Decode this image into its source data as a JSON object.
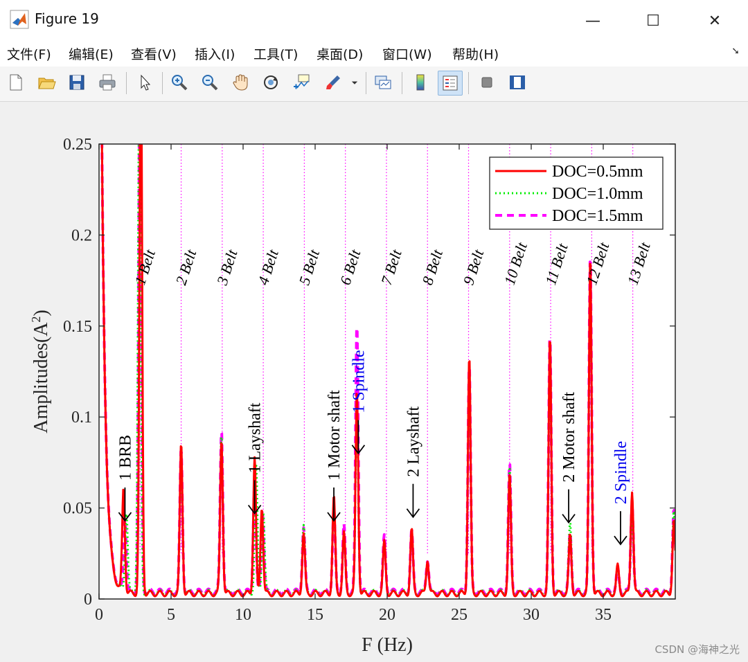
{
  "window": {
    "title": "Figure 19",
    "minimize_glyph": "—",
    "maximize_glyph": "☐",
    "close_glyph": "✕"
  },
  "menu": {
    "items": [
      "文件(F)",
      "编辑(E)",
      "查看(V)",
      "插入(I)",
      "工具(T)",
      "桌面(D)",
      "窗口(W)",
      "帮助(H)"
    ]
  },
  "toolbar": {
    "icons": [
      "new-figure-icon",
      "open-file-icon",
      "save-icon",
      "print-icon",
      "pointer-icon",
      "zoom-in-icon",
      "zoom-out-icon",
      "pan-hand-icon",
      "rotate-3d-icon",
      "data-cursor-icon",
      "brush-icon",
      "link-plot-icon",
      "colorbar-icon",
      "legend-icon",
      "hide-plot-tools-icon",
      "show-plot-tools-icon"
    ]
  },
  "watermark": "CSDN @海神之光",
  "colors": {
    "red": "#ff0000",
    "green": "#00ee00",
    "magenta": "#ff00ff",
    "blue": "#0000ee",
    "black": "#000000"
  },
  "chart_data": {
    "type": "line",
    "title": "",
    "xlabel": "F       (Hz)",
    "ylabel": "Amplitudes(A",
    "ylabel_sup": "2",
    "ylabel_close": ")",
    "xlim": [
      0,
      40
    ],
    "ylim": [
      0,
      0.25
    ],
    "xticks": [
      0,
      5,
      10,
      15,
      20,
      25,
      30,
      35
    ],
    "yticks": [
      0,
      0.05,
      0.1,
      0.15,
      0.2,
      0.25
    ],
    "xtick_labels": [
      "0",
      "5",
      "10",
      "15",
      "20",
      "25",
      "30",
      "35"
    ],
    "ytick_labels": [
      "0",
      "0.05",
      "0.1",
      "0.15",
      "0.2",
      "0.25"
    ],
    "legend_position": "top-right",
    "series": [
      {
        "name": "DOC=0.5mm",
        "style": "solid",
        "color": "#ff0000",
        "baseline": 0.003,
        "peaks": [
          [
            1.7,
            0.057
          ],
          [
            2.9,
            0.3
          ],
          [
            5.7,
            0.082
          ],
          [
            8.5,
            0.085
          ],
          [
            10.8,
            0.075
          ],
          [
            11.3,
            0.048
          ],
          [
            14.2,
            0.033
          ],
          [
            16.3,
            0.053
          ],
          [
            17.0,
            0.033
          ],
          [
            17.9,
            0.112
          ],
          [
            19.8,
            0.028
          ],
          [
            21.7,
            0.035
          ],
          [
            22.8,
            0.019
          ],
          [
            25.7,
            0.13
          ],
          [
            28.5,
            0.065
          ],
          [
            31.3,
            0.14
          ],
          [
            32.7,
            0.032
          ],
          [
            34.1,
            0.185
          ],
          [
            36.0,
            0.015
          ],
          [
            37.0,
            0.057
          ],
          [
            39.9,
            0.04
          ]
        ]
      },
      {
        "name": "DOC=1.0mm",
        "style": "dotted",
        "color": "#00ee00",
        "baseline": 0.0035,
        "peaks": [
          [
            1.9,
            0.045
          ],
          [
            2.8,
            0.29
          ],
          [
            5.7,
            0.075
          ],
          [
            8.5,
            0.088
          ],
          [
            10.9,
            0.07
          ],
          [
            11.4,
            0.045
          ],
          [
            14.2,
            0.037
          ],
          [
            16.3,
            0.05
          ],
          [
            17.0,
            0.03
          ],
          [
            17.9,
            0.105
          ],
          [
            19.8,
            0.027
          ],
          [
            21.7,
            0.033
          ],
          [
            22.8,
            0.017
          ],
          [
            25.7,
            0.125
          ],
          [
            28.5,
            0.068
          ],
          [
            31.3,
            0.135
          ],
          [
            32.7,
            0.038
          ],
          [
            34.1,
            0.175
          ],
          [
            36.0,
            0.013
          ],
          [
            37.0,
            0.045
          ],
          [
            39.9,
            0.045
          ]
        ]
      },
      {
        "name": "DOC=1.5mm",
        "style": "dashed",
        "color": "#ff00ff",
        "baseline": 0.004,
        "peaks": [
          [
            1.8,
            0.04
          ],
          [
            2.85,
            0.31
          ],
          [
            5.7,
            0.078
          ],
          [
            8.5,
            0.09
          ],
          [
            10.8,
            0.06
          ],
          [
            11.35,
            0.044
          ],
          [
            14.2,
            0.035
          ],
          [
            16.3,
            0.045
          ],
          [
            17.0,
            0.036
          ],
          [
            17.9,
            0.148
          ],
          [
            19.8,
            0.03
          ],
          [
            21.7,
            0.033
          ],
          [
            22.8,
            0.018
          ],
          [
            25.7,
            0.125
          ],
          [
            28.5,
            0.07
          ],
          [
            31.3,
            0.14
          ],
          [
            32.7,
            0.032
          ],
          [
            34.1,
            0.185
          ],
          [
            36.0,
            0.012
          ],
          [
            37.0,
            0.05
          ],
          [
            39.9,
            0.045
          ]
        ]
      }
    ],
    "belt_lines": [
      {
        "x": 2.85,
        "label": "1 Belt"
      },
      {
        "x": 5.7,
        "label": "2 Belt"
      },
      {
        "x": 8.55,
        "label": "3 Belt"
      },
      {
        "x": 11.4,
        "label": "4 Belt"
      },
      {
        "x": 14.25,
        "label": "5 Belt"
      },
      {
        "x": 17.1,
        "label": "6 Belt"
      },
      {
        "x": 19.95,
        "label": "7 Belt"
      },
      {
        "x": 22.8,
        "label": "8 Belt"
      },
      {
        "x": 25.65,
        "label": "9 Belt"
      },
      {
        "x": 28.5,
        "label": "10 Belt"
      },
      {
        "x": 31.35,
        "label": "11 Belt"
      },
      {
        "x": 34.2,
        "label": "12 Belt"
      },
      {
        "x": 37.05,
        "label": "13 Belt"
      }
    ],
    "annotations": [
      {
        "label": "1 BRB",
        "x": 1.8,
        "y": 0.043,
        "color": "#000000"
      },
      {
        "label": "1 Layshaft",
        "x": 10.8,
        "y": 0.047,
        "color": "#000000"
      },
      {
        "label": "1 Motor shaft",
        "x": 16.3,
        "y": 0.043,
        "color": "#000000"
      },
      {
        "label": "1 Spindle",
        "x": 18.0,
        "y": 0.08,
        "color": "#0000ee"
      },
      {
        "label": "2 Layshaft",
        "x": 21.8,
        "y": 0.045,
        "color": "#000000"
      },
      {
        "label": "2 Motor shaft",
        "x": 32.6,
        "y": 0.042,
        "color": "#000000"
      },
      {
        "label": "2 Spindle",
        "x": 36.2,
        "y": 0.03,
        "color": "#0000ee"
      }
    ]
  }
}
